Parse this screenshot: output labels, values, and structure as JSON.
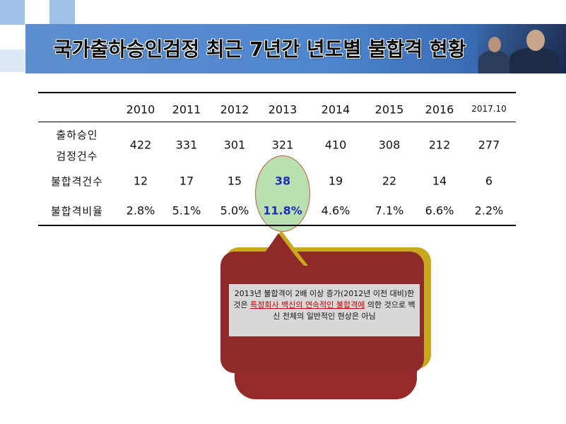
{
  "title": "국가출하승인검정 최근 7년간 년도별 불합격 현황",
  "table": {
    "years": [
      "2010",
      "2011",
      "2012",
      "2013",
      "2014",
      "2015",
      "2016",
      "2017.10"
    ],
    "rows": [
      {
        "label_line1": "출하승인",
        "label_line2": "검정건수",
        "values": [
          "422",
          "331",
          "301",
          "321",
          "410",
          "308",
          "212",
          "277"
        ]
      },
      {
        "label": "불합격건수",
        "values": [
          "12",
          "17",
          "15",
          "38",
          "19",
          "22",
          "14",
          "6"
        ]
      },
      {
        "label": "불합격비율",
        "values": [
          "2.8%",
          "5.1%",
          "5.0%",
          "11.8%",
          "4.6%",
          "7.1%",
          "6.6%",
          "2.2%"
        ]
      }
    ]
  },
  "note": {
    "part1": "2013년 불합격이 2배 이상 증가(2012년 이전 대비)한 것은 ",
    "highlight": "특정회사 백신의 연속적인 불합격에",
    "part2": " 의한 것으로 백신 전체의 일반적인 현상은 아님"
  },
  "colors": {
    "banner": "#4f86cf",
    "callout": "#8e2a2a",
    "callout_edge": "#c8a81e",
    "highlight_oval": "#b9e0b0",
    "highlight_text": "#1d2db8",
    "note_emphasis": "#cc0000"
  }
}
